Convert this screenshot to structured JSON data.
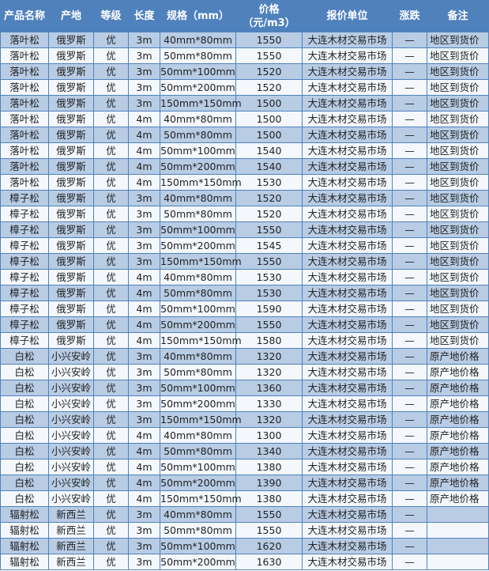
{
  "table": {
    "headers": [
      "产品名称",
      "产地",
      "等级",
      "长度",
      "规格（mm）",
      "价格（元/m3）",
      "报价单位",
      "涨跌",
      "备注"
    ],
    "rows": [
      [
        "落叶松",
        "俄罗斯",
        "优",
        "3m",
        "40mm*80mm",
        "1550",
        "大连木材交易市场",
        "—",
        "地区到货价"
      ],
      [
        "落叶松",
        "俄罗斯",
        "优",
        "3m",
        "50mm*80mm",
        "1550",
        "大连木材交易市场",
        "—",
        "地区到货价"
      ],
      [
        "落叶松",
        "俄罗斯",
        "优",
        "3m",
        "50mm*100mm",
        "1520",
        "大连木材交易市场",
        "—",
        "地区到货价"
      ],
      [
        "落叶松",
        "俄罗斯",
        "优",
        "3m",
        "50mm*200mm",
        "1520",
        "大连木材交易市场",
        "—",
        "地区到货价"
      ],
      [
        "落叶松",
        "俄罗斯",
        "优",
        "3m",
        "150mm*150mm",
        "1500",
        "大连木材交易市场",
        "—",
        "地区到货价"
      ],
      [
        "落叶松",
        "俄罗斯",
        "优",
        "4m",
        "40mm*80mm",
        "1500",
        "大连木材交易市场",
        "—",
        "地区到货价"
      ],
      [
        "落叶松",
        "俄罗斯",
        "优",
        "4m",
        "50mm*80mm",
        "1500",
        "大连木材交易市场",
        "—",
        "地区到货价"
      ],
      [
        "落叶松",
        "俄罗斯",
        "优",
        "4m",
        "50mm*100mm",
        "1540",
        "大连木材交易市场",
        "—",
        "地区到货价"
      ],
      [
        "落叶松",
        "俄罗斯",
        "优",
        "4m",
        "50mm*200mm",
        "1540",
        "大连木材交易市场",
        "—",
        "地区到货价"
      ],
      [
        "落叶松",
        "俄罗斯",
        "优",
        "4m",
        "150mm*150mm",
        "1530",
        "大连木材交易市场",
        "—",
        "地区到货价"
      ],
      [
        "樟子松",
        "俄罗斯",
        "优",
        "3m",
        "40mm*80mm",
        "1520",
        "大连木材交易市场",
        "—",
        "地区到货价"
      ],
      [
        "樟子松",
        "俄罗斯",
        "优",
        "3m",
        "50mm*80mm",
        "1520",
        "大连木材交易市场",
        "—",
        "地区到货价"
      ],
      [
        "樟子松",
        "俄罗斯",
        "优",
        "3m",
        "50mm*100mm",
        "1550",
        "大连木材交易市场",
        "—",
        "地区到货价"
      ],
      [
        "樟子松",
        "俄罗斯",
        "优",
        "3m",
        "50mm*200mm",
        "1545",
        "大连木材交易市场",
        "—",
        "地区到货价"
      ],
      [
        "樟子松",
        "俄罗斯",
        "优",
        "3m",
        "150mm*150mm",
        "1550",
        "大连木材交易市场",
        "—",
        "地区到货价"
      ],
      [
        "樟子松",
        "俄罗斯",
        "优",
        "4m",
        "40mm*80mm",
        "1530",
        "大连木材交易市场",
        "—",
        "地区到货价"
      ],
      [
        "樟子松",
        "俄罗斯",
        "优",
        "4m",
        "50mm*80mm",
        "1530",
        "大连木材交易市场",
        "—",
        "地区到货价"
      ],
      [
        "樟子松",
        "俄罗斯",
        "优",
        "4m",
        "50mm*100mm",
        "1590",
        "大连木材交易市场",
        "—",
        "地区到货价"
      ],
      [
        "樟子松",
        "俄罗斯",
        "优",
        "4m",
        "50mm*200mm",
        "1550",
        "大连木材交易市场",
        "—",
        "地区到货价"
      ],
      [
        "樟子松",
        "俄罗斯",
        "优",
        "4m",
        "150mm*150mm",
        "1580",
        "大连木材交易市场",
        "—",
        "地区到货价"
      ],
      [
        "白松",
        "小兴安岭",
        "优",
        "3m",
        "40mm*80mm",
        "1320",
        "大连木材交易市场",
        "—",
        "原产地价格"
      ],
      [
        "白松",
        "小兴安岭",
        "优",
        "3m",
        "50mm*80mm",
        "1320",
        "大连木材交易市场",
        "—",
        "原产地价格"
      ],
      [
        "白松",
        "小兴安岭",
        "优",
        "3m",
        "50mm*100mm",
        "1360",
        "大连木材交易市场",
        "—",
        "原产地价格"
      ],
      [
        "白松",
        "小兴安岭",
        "优",
        "3m",
        "50mm*200mm",
        "1330",
        "大连木材交易市场",
        "—",
        "原产地价格"
      ],
      [
        "白松",
        "小兴安岭",
        "优",
        "3m",
        "150mm*150mm",
        "1320",
        "大连木材交易市场",
        "—",
        "原产地价格"
      ],
      [
        "白松",
        "小兴安岭",
        "优",
        "4m",
        "40mm*80mm",
        "1300",
        "大连木材交易市场",
        "—",
        "原产地价格"
      ],
      [
        "白松",
        "小兴安岭",
        "优",
        "4m",
        "50mm*80mm",
        "1340",
        "大连木材交易市场",
        "—",
        "原产地价格"
      ],
      [
        "白松",
        "小兴安岭",
        "优",
        "4m",
        "50mm*100mm",
        "1380",
        "大连木材交易市场",
        "—",
        "原产地价格"
      ],
      [
        "白松",
        "小兴安岭",
        "优",
        "4m",
        "50mm*200mm",
        "1390",
        "大连木材交易市场",
        "—",
        "原产地价格"
      ],
      [
        "白松",
        "小兴安岭",
        "优",
        "4m",
        "150mm*150mm",
        "1380",
        "大连木材交易市场",
        "—",
        "原产地价格"
      ],
      [
        "辐射松",
        "新西兰",
        "优",
        "3m",
        "40mm*80mm",
        "1550",
        "大连木材交易市场",
        "—",
        ""
      ],
      [
        "辐射松",
        "新西兰",
        "优",
        "3m",
        "50mm*80mm",
        "1550",
        "大连木材交易市场",
        "—",
        ""
      ],
      [
        "辐射松",
        "新西兰",
        "优",
        "3m",
        "50mm*100mm",
        "1620",
        "大连木材交易市场",
        "—",
        ""
      ],
      [
        "辐射松",
        "新西兰",
        "优",
        "3m",
        "50mm*200mm",
        "1630",
        "大连木材交易市场",
        "—",
        ""
      ]
    ]
  },
  "colors": {
    "header": "#4f81bd",
    "row_alt": "#b8cce4",
    "row": "#f4f8fd",
    "border": "#4f81bd"
  }
}
